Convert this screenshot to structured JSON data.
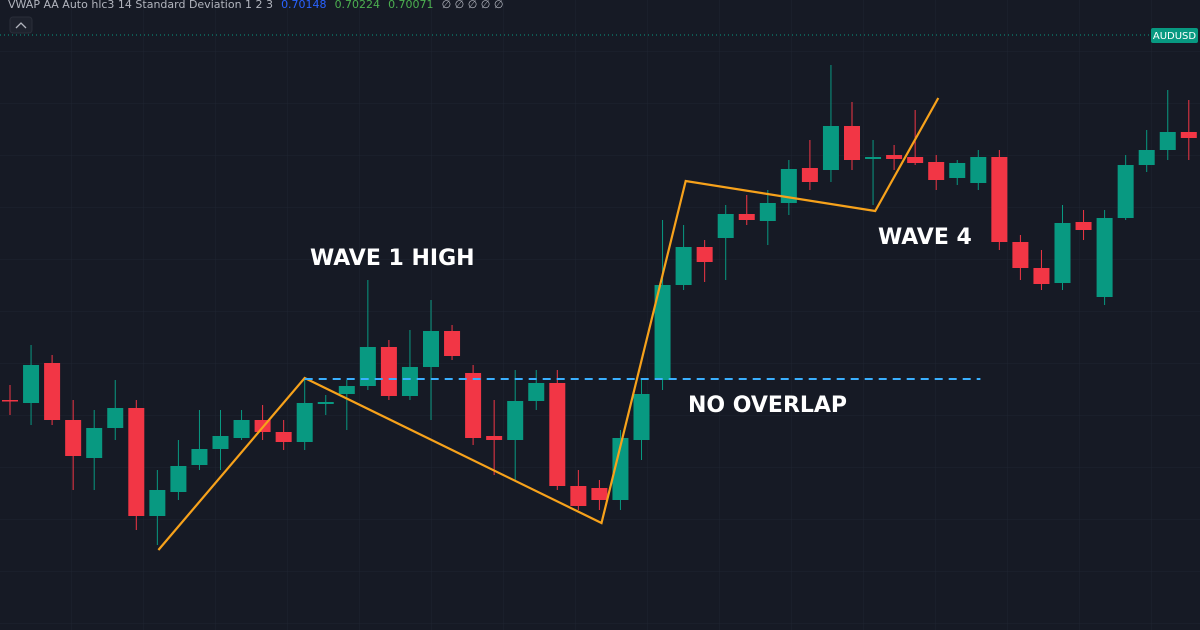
{
  "header": {
    "indicator": "VWAP AA Auto hlc3 14 Standard Deviation 1 2 3",
    "values": [
      {
        "text": "0.70148",
        "color": "#2962ff"
      },
      {
        "text": "0.70224",
        "color": "#4caf50"
      },
      {
        "text": "0.70071",
        "color": "#4caf50"
      }
    ],
    "flags": "∅ ∅ ∅ ∅ ∅"
  },
  "symbol": "AUDUSD",
  "chart_data": {
    "type": "candlestick",
    "ylim": [
      0.6985,
      0.7048
    ],
    "up_color": "#089981",
    "down_color": "#f23645",
    "open": [
      0.7008,
      0.70077,
      0.70117,
      0.7006,
      0.70022,
      0.70052,
      0.70072,
      0.69964,
      0.69988,
      0.70015,
      0.70031,
      0.70042,
      0.7006,
      0.70048,
      0.70038,
      0.70076,
      0.70086,
      0.70094,
      0.70133,
      0.70084,
      0.70113,
      0.70149,
      0.70107,
      0.70044,
      0.7004,
      0.70079,
      0.70097,
      0.69994,
      0.69992,
      0.6998,
      0.7004,
      0.701,
      0.70195,
      0.70233,
      0.70242,
      0.70266,
      0.70259,
      0.70277,
      0.70312,
      0.7031,
      0.70354,
      0.70321,
      0.70325,
      0.70323,
      0.70318,
      0.70302,
      0.70297,
      0.70323,
      0.70238,
      0.70212,
      0.70197,
      0.70258,
      0.70183,
      0.70262,
      0.70315,
      0.7033,
      0.70348
    ],
    "high": [
      0.70095,
      0.70135,
      0.70125,
      0.7008,
      0.7007,
      0.701,
      0.7008,
      0.7001,
      0.7004,
      0.7007,
      0.7007,
      0.7007,
      0.70075,
      0.7006,
      0.701,
      0.70085,
      0.701,
      0.702,
      0.7014,
      0.7015,
      0.7018,
      0.70155,
      0.70115,
      0.7008,
      0.7011,
      0.7011,
      0.7011,
      0.7001,
      0.7,
      0.7005,
      0.701,
      0.7026,
      0.70255,
      0.7024,
      0.70275,
      0.70285,
      0.7029,
      0.7032,
      0.7034,
      0.70415,
      0.70378,
      0.7034,
      0.70335,
      0.7037,
      0.70325,
      0.7032,
      0.7033,
      0.7033,
      0.70245,
      0.7023,
      0.70275,
      0.7027,
      0.7027,
      0.70325,
      0.7035,
      0.7039,
      0.7038
    ],
    "low": [
      0.70065,
      0.70055,
      0.70055,
      0.6999,
      0.6999,
      0.7004,
      0.6995,
      0.69935,
      0.6998,
      0.7001,
      0.7001,
      0.7004,
      0.7004,
      0.7003,
      0.7003,
      0.70065,
      0.7005,
      0.7009,
      0.7008,
      0.7008,
      0.7006,
      0.7012,
      0.70035,
      0.70005,
      0.7,
      0.7007,
      0.6999,
      0.6997,
      0.6997,
      0.6997,
      0.7002,
      0.7009,
      0.7019,
      0.70198,
      0.702,
      0.70255,
      0.70235,
      0.70265,
      0.7029,
      0.70298,
      0.7031,
      0.70275,
      0.7031,
      0.70315,
      0.7029,
      0.70295,
      0.7029,
      0.7023,
      0.702,
      0.7019,
      0.7019,
      0.7024,
      0.70175,
      0.7026,
      0.70308,
      0.7032,
      0.7032
    ],
    "close": [
      0.70079,
      0.70115,
      0.7006,
      0.70024,
      0.70052,
      0.70072,
      0.69964,
      0.6999,
      0.70014,
      0.70031,
      0.70044,
      0.7006,
      0.70048,
      0.70038,
      0.70077,
      0.70078,
      0.70094,
      0.70133,
      0.70084,
      0.70113,
      0.70149,
      0.70124,
      0.70042,
      0.7004,
      0.70079,
      0.70097,
      0.69994,
      0.69974,
      0.6998,
      0.70042,
      0.70086,
      0.70195,
      0.70233,
      0.70218,
      0.70266,
      0.7026,
      0.70277,
      0.70311,
      0.70298,
      0.70354,
      0.7032,
      0.70323,
      0.70321,
      0.70317,
      0.703,
      0.70317,
      0.70323,
      0.70238,
      0.70212,
      0.70196,
      0.70257,
      0.7025,
      0.70262,
      0.70315,
      0.7033,
      0.70348,
      0.70342
    ],
    "overlays": [
      {
        "style": "solid",
        "color": "#f7a21b",
        "x": [
          7.05,
          14,
          28.1,
          32.1,
          41.1,
          44.1
        ],
        "values": [
          0.6993,
          0.70102,
          0.69957,
          0.70299,
          0.70269,
          0.70382
        ]
      },
      {
        "style": "dashed",
        "color": "#3ab0ff",
        "x": [
          14,
          46.1
        ],
        "values": [
          0.70101,
          0.70101
        ]
      }
    ],
    "annotations": [
      "WAVE 1 HIGH",
      "NO OVERLAP",
      "WAVE 4"
    ]
  }
}
